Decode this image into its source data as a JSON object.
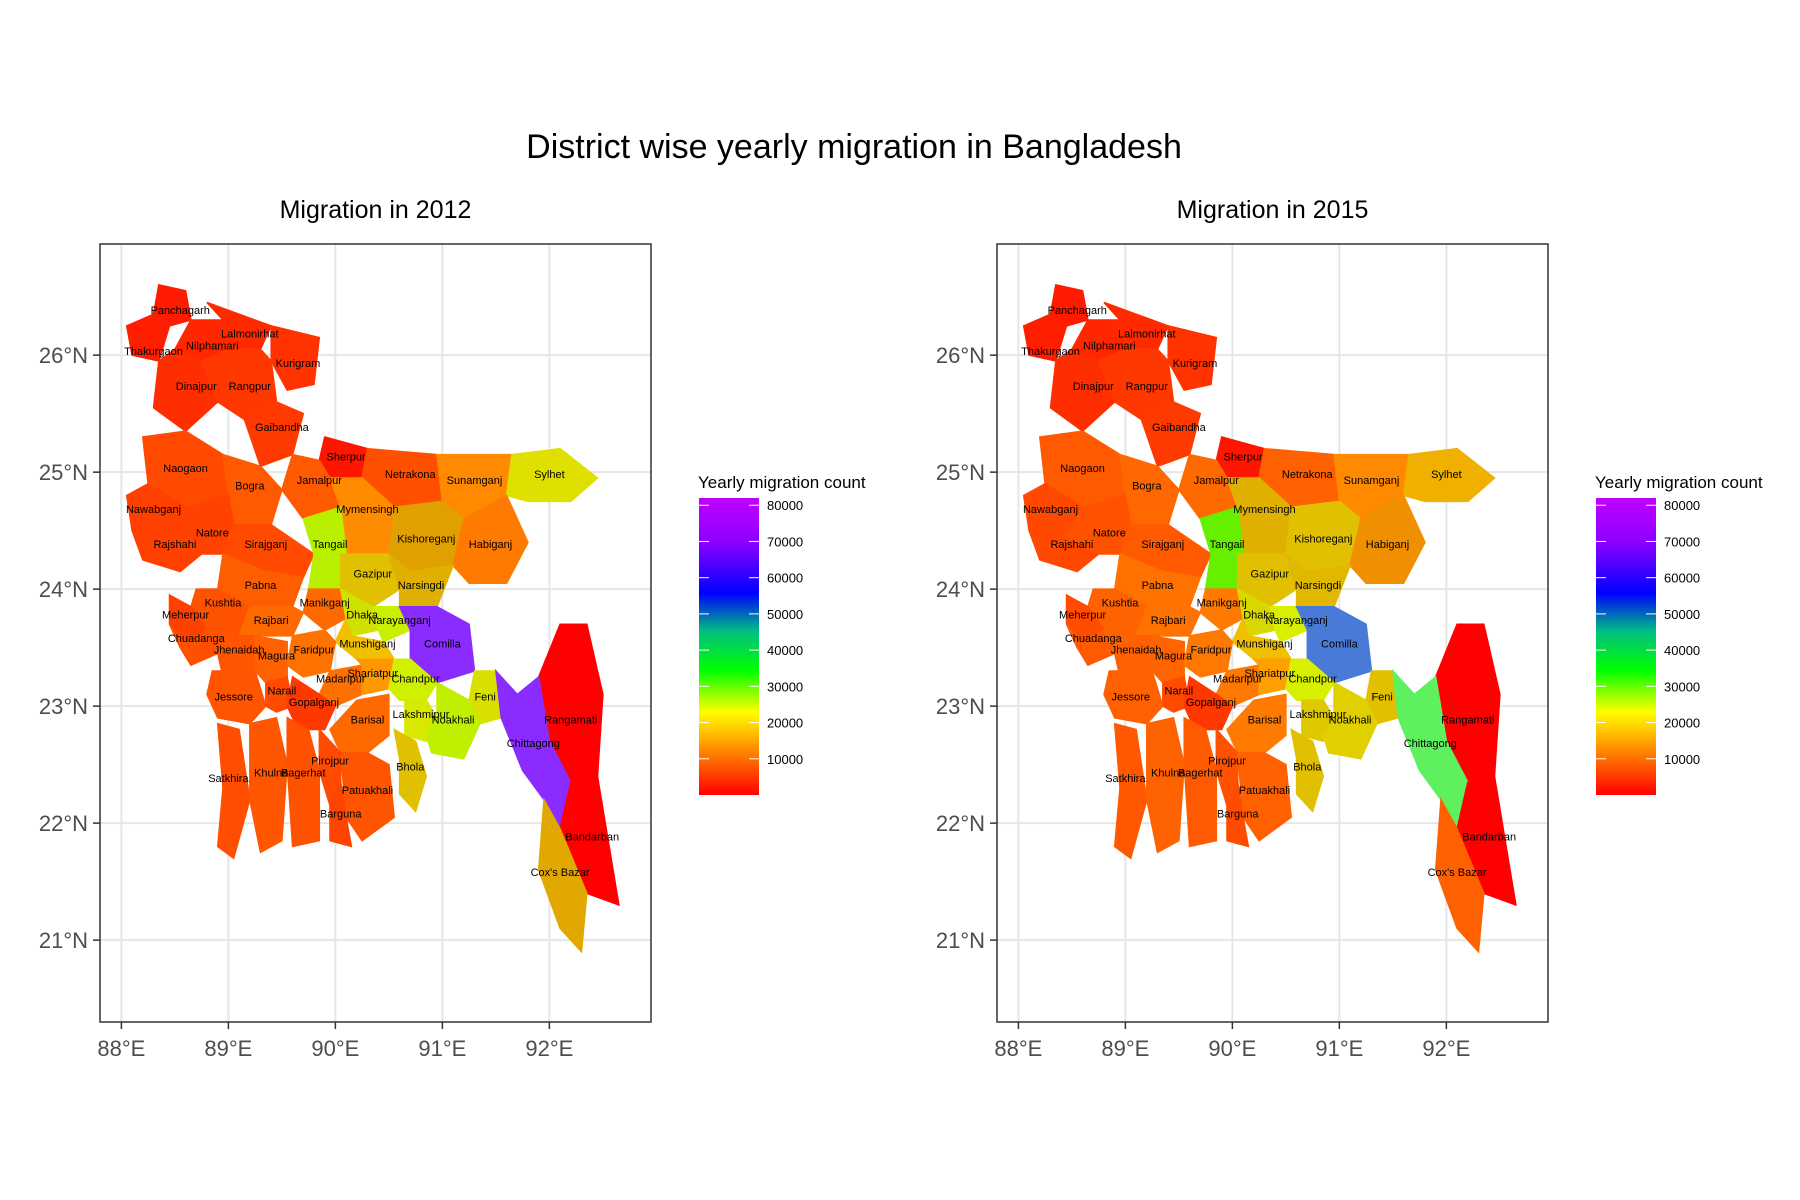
{
  "title": "District wise yearly migration in Bangladesh",
  "legend": {
    "title": "Yearly migration count",
    "ticks": [
      "80000",
      "70000",
      "60000",
      "50000",
      "40000",
      "30000",
      "20000",
      "10000"
    ],
    "gradient": [
      "#ff0000",
      "#ff7f00",
      "#ffff00",
      "#00ff00",
      "#00ffff",
      "#0000ff",
      "#8b00ff",
      "#ff00ff"
    ]
  },
  "axes": {
    "x_ticks": [
      "88°E",
      "89°E",
      "90°E",
      "91°E",
      "92°E"
    ],
    "y_ticks": [
      "26°N",
      "25°N",
      "24°N",
      "23°N",
      "22°N",
      "21°N"
    ]
  },
  "district_labels": [
    "Panchagarh",
    "Lalmonirhat",
    "Nilphamari",
    "Thakurgaon",
    "Kurigram",
    "Dinajpur",
    "Rangpur",
    "Gaibandha",
    "Sherpur",
    "Jamalpur",
    "Netrakona",
    "Sunamganj",
    "Sylhet",
    "Naogaon",
    "Bogra",
    "Nawabganj",
    "Mymensingh",
    "Rajshahi",
    "Natore",
    "Sirajganj",
    "Tangail",
    "Kishoreganj",
    "Habiganj",
    "Pabna",
    "Gazipur",
    "Narsingdi",
    "Kushtia",
    "Meherpur",
    "Manikganj",
    "Dhaka",
    "Rajbari",
    "Narayanganj",
    "Chuadanga",
    "Munshiganj",
    "Jhenaidah",
    "Magura",
    "Faridpur",
    "Comilla",
    "Madaripur",
    "Shariatpur",
    "Chandpur",
    "Jessore",
    "Narail",
    "Gopalganj",
    "Feni",
    "Lakshmipur",
    "Rangamati",
    "Noakhali",
    "Barisal",
    "Satkhira",
    "Khulna",
    "Bagerhat",
    "Pirojpur",
    "Chittagong",
    "Bhola",
    "Patuakhali",
    "Barguna",
    "Bandarban",
    "Cox's Bazar"
  ],
  "maps": [
    {
      "title": "Migration in 2012",
      "colors": {
        "Panchagarh": "#ff1a00",
        "Lalmonirhat": "#ff2a00",
        "Nilphamari": "#ff2600",
        "Thakurgaon": "#ff1e00",
        "Kurigram": "#ff3200",
        "Dinajpur": "#ff2e00",
        "Rangpur": "#ff3800",
        "Gaibandha": "#ff3a00",
        "Sherpur": "#ff1600",
        "Jamalpur": "#ff5a00",
        "Netrakona": "#ff5000",
        "Sunamganj": "#ff8a00",
        "Sylhet": "#e0e000",
        "Naogaon": "#ff4a00",
        "Bogra": "#ff5a00",
        "Nawabganj": "#ff4000",
        "Mymensingh": "#ff8c00",
        "Rajshahi": "#ff4000",
        "Natore": "#ff4200",
        "Sirajganj": "#ff4a00",
        "Tangail": "#b8f000",
        "Kishoreganj": "#e0a000",
        "Habiganj": "#ff7a00",
        "Pabna": "#ff5e00",
        "Gazipur": "#e0c000",
        "Narsingdi": "#e0b000",
        "Kushtia": "#ff5200",
        "Meherpur": "#ff4000",
        "Manikganj": "#ff6a00",
        "Dhaka": "#d0e000",
        "Rajbari": "#ff6a00",
        "Narayanganj": "#c8f000",
        "Chuadanga": "#ff5000",
        "Munshiganj": "#f0c000",
        "Jhenaidah": "#ff5400",
        "Magura": "#ff6000",
        "Faridpur": "#ff7200",
        "Comilla": "#8a2cff",
        "Madaripur": "#ff7000",
        "Shariatpur": "#ff9800",
        "Chandpur": "#d0f000",
        "Jessore": "#ff5400",
        "Narail": "#ff4a00",
        "Gopalganj": "#ff3800",
        "Feni": "#d8e000",
        "Lakshmipur": "#d8e800",
        "Rangamati": "#ff0000",
        "Noakhali": "#c0f000",
        "Barisal": "#ff6a00",
        "Satkhira": "#ff4e00",
        "Khulna": "#ff5600",
        "Bagerhat": "#ff5200",
        "Pirojpur": "#ff4a00",
        "Chittagong": "#8a2cff",
        "Bhola": "#e0c000",
        "Patuakhali": "#ff5400",
        "Barguna": "#ff4400",
        "Bandarban": "#ff0000",
        "Cox's Bazar": "#e0a800"
      }
    },
    {
      "title": "Migration in 2015",
      "colors": {
        "Panchagarh": "#ff1a00",
        "Lalmonirhat": "#ff2a00",
        "Nilphamari": "#ff2600",
        "Thakurgaon": "#ff1e00",
        "Kurigram": "#ff3200",
        "Dinajpur": "#ff2e00",
        "Rangpur": "#ff3800",
        "Gaibandha": "#ff3a00",
        "Sherpur": "#ff1600",
        "Jamalpur": "#ff6a00",
        "Netrakona": "#ff6000",
        "Sunamganj": "#ff8a00",
        "Sylhet": "#f0b000",
        "Naogaon": "#ff5a00",
        "Bogra": "#ff6800",
        "Nawabganj": "#ff4800",
        "Mymensingh": "#e0b000",
        "Rajshahi": "#ff4800",
        "Natore": "#ff5200",
        "Sirajganj": "#ff5a00",
        "Tangail": "#66f000",
        "Kishoreganj": "#e0c000",
        "Habiganj": "#f09000",
        "Pabna": "#ff7200",
        "Gazipur": "#e0c000",
        "Narsingdi": "#e0b800",
        "Kushtia": "#ff6200",
        "Meherpur": "#ff4c00",
        "Manikganj": "#ff7a00",
        "Dhaka": "#d8d800",
        "Rajbari": "#ff7200",
        "Narayanganj": "#d8f000",
        "Chuadanga": "#ff5a00",
        "Munshiganj": "#f0c000",
        "Jhenaidah": "#ff6000",
        "Magura": "#ff6400",
        "Faridpur": "#ff7800",
        "Comilla": "#4a7ad8",
        "Madaripur": "#ff7800",
        "Shariatpur": "#ffa000",
        "Chandpur": "#d8f000",
        "Jessore": "#ff6000",
        "Narail": "#ff4c00",
        "Gopalganj": "#ff3800",
        "Feni": "#e0c000",
        "Lakshmipur": "#e0c800",
        "Rangamati": "#ff0000",
        "Noakhali": "#e0d000",
        "Barisal": "#ff7a00",
        "Satkhira": "#ff5800",
        "Khulna": "#ff6200",
        "Bagerhat": "#ff5a00",
        "Pirojpur": "#ff5200",
        "Chittagong": "#5ef05e",
        "Bhola": "#e0c000",
        "Patuakhali": "#ff6000",
        "Barguna": "#ff4c00",
        "Bandarban": "#ff0000",
        "Cox's Bazar": "#ff6000"
      }
    }
  ]
}
